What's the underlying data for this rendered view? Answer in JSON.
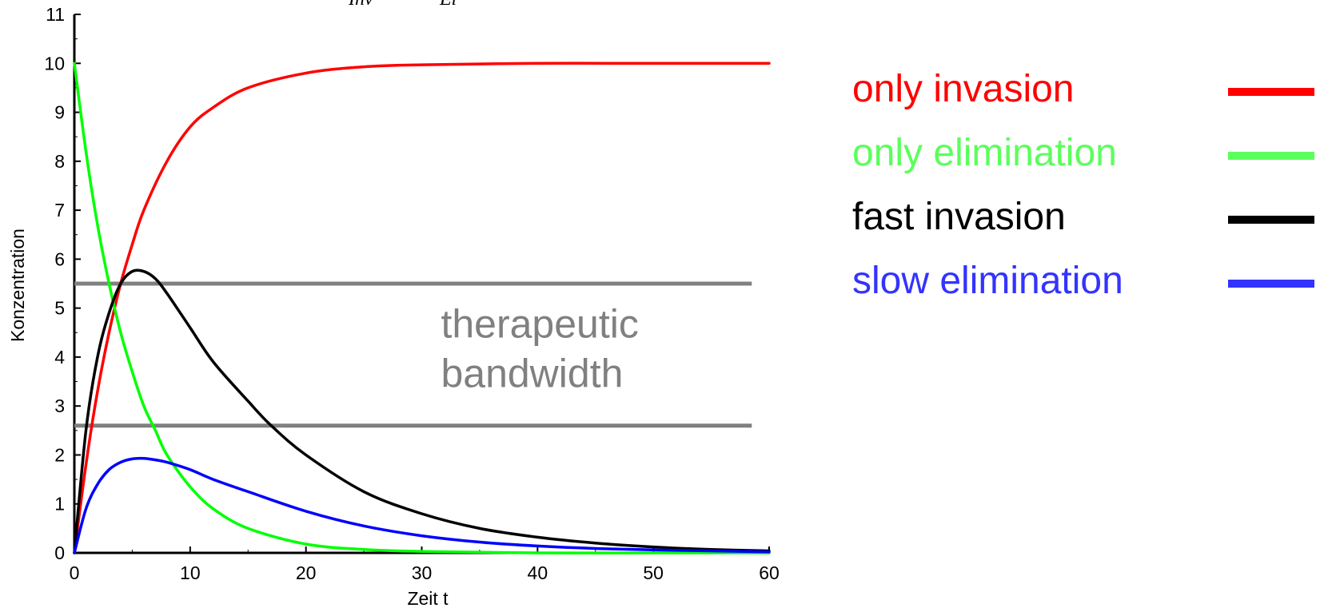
{
  "chart_data": {
    "type": "line",
    "title_fragment": [
      "Inv",
      "El"
    ],
    "xlabel": "Zeit t",
    "ylabel": "Konzentration",
    "xlim": [
      0,
      60
    ],
    "ylim": [
      0,
      11
    ],
    "x_ticks": [
      "0",
      "10",
      "20",
      "30",
      "40",
      "50",
      "60"
    ],
    "y_ticks": [
      "0",
      "1",
      "2",
      "3",
      "4",
      "5",
      "6",
      "7",
      "8",
      "9",
      "10",
      "11"
    ],
    "grid": false,
    "legend_position": "right",
    "series": [
      {
        "name": "only invasion",
        "color": "#ff0000",
        "x": [
          0,
          1,
          2,
          3,
          4,
          5,
          6,
          8,
          10,
          12,
          15,
          20,
          25,
          30,
          40,
          50,
          60
        ],
        "y": [
          0,
          1.8,
          3.3,
          4.5,
          5.5,
          6.3,
          7.0,
          8.0,
          8.7,
          9.1,
          9.5,
          9.8,
          9.93,
          9.97,
          10.0,
          10.0,
          10.0
        ]
      },
      {
        "name": "only elimination",
        "color": "#00ff00",
        "x": [
          0,
          1,
          2,
          3,
          4,
          5,
          6,
          7,
          8,
          10,
          12,
          15,
          20,
          25,
          30,
          40,
          50,
          60
        ],
        "y": [
          10,
          8.2,
          6.7,
          5.5,
          4.5,
          3.7,
          3.0,
          2.5,
          2.0,
          1.35,
          0.9,
          0.5,
          0.18,
          0.07,
          0.03,
          0.0,
          0.0,
          0.0
        ]
      },
      {
        "name": "fast invasion",
        "color": "#000000",
        "x": [
          0,
          1,
          2,
          3,
          4,
          5,
          6,
          7,
          8,
          10,
          12,
          15,
          17,
          20,
          25,
          30,
          35,
          40,
          45,
          50,
          55,
          60
        ],
        "y": [
          0,
          2.5,
          4.0,
          4.9,
          5.5,
          5.75,
          5.75,
          5.6,
          5.3,
          4.6,
          3.9,
          3.1,
          2.6,
          2.0,
          1.25,
          0.8,
          0.5,
          0.32,
          0.2,
          0.12,
          0.07,
          0.04
        ]
      },
      {
        "name": "slow elimination",
        "color": "#0000ff",
        "x": [
          0,
          1,
          2,
          3,
          4,
          5,
          6,
          7,
          8,
          10,
          12,
          15,
          20,
          25,
          30,
          35,
          40,
          45,
          50,
          55,
          60
        ],
        "y": [
          0,
          0.9,
          1.4,
          1.7,
          1.85,
          1.92,
          1.93,
          1.9,
          1.85,
          1.7,
          1.5,
          1.25,
          0.85,
          0.55,
          0.35,
          0.22,
          0.14,
          0.09,
          0.06,
          0.04,
          0.02
        ]
      }
    ],
    "reference_lines": [
      {
        "y": 5.5,
        "color": "#808080"
      },
      {
        "y": 2.6,
        "color": "#808080"
      }
    ],
    "annotation": {
      "lines": [
        "therapeutic",
        "bandwidth"
      ],
      "color": "#808080",
      "x": 32,
      "y": 4.4
    }
  },
  "legend": {
    "items": [
      {
        "label": "only invasion",
        "color": "#ff0000"
      },
      {
        "label": "only elimination",
        "color": "#5bff5b"
      },
      {
        "label": "fast invasion",
        "color": "#000000"
      },
      {
        "label": "slow elimination",
        "color": "#3333ff"
      }
    ]
  }
}
